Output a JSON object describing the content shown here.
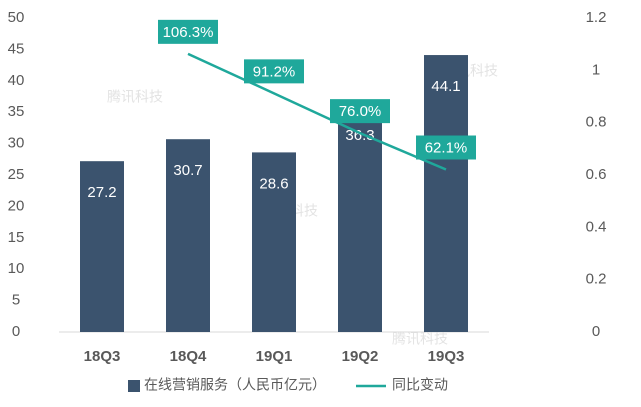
{
  "chart_data": {
    "type": "bar-line",
    "categories": [
      "18Q3",
      "18Q4",
      "19Q1",
      "19Q2",
      "19Q3"
    ],
    "series": [
      {
        "name": "在线营销服务（人民币亿元）",
        "type": "bar",
        "color": "#3b536e",
        "axis": "y",
        "values": [
          27.2,
          30.7,
          28.6,
          36.3,
          44.1
        ]
      },
      {
        "name": "同比变动",
        "type": "line",
        "color": "#1fa89b",
        "axis": "y2",
        "values": [
          null,
          1.063,
          0.912,
          0.76,
          0.621
        ],
        "value_labels": [
          null,
          "106.3%",
          "91.2%",
          "76.0%",
          "62.1%"
        ]
      }
    ],
    "ylim": [
      0,
      50
    ],
    "yticks": [
      0,
      5,
      10,
      15,
      20,
      25,
      30,
      35,
      40,
      45,
      50
    ],
    "y2lim": [
      0,
      1.2
    ],
    "y2ticks": [
      0,
      0.2,
      0.4,
      0.6,
      0.8,
      1,
      1.2
    ],
    "grid": false,
    "legend": "bottom",
    "watermark": "腾讯科技"
  }
}
